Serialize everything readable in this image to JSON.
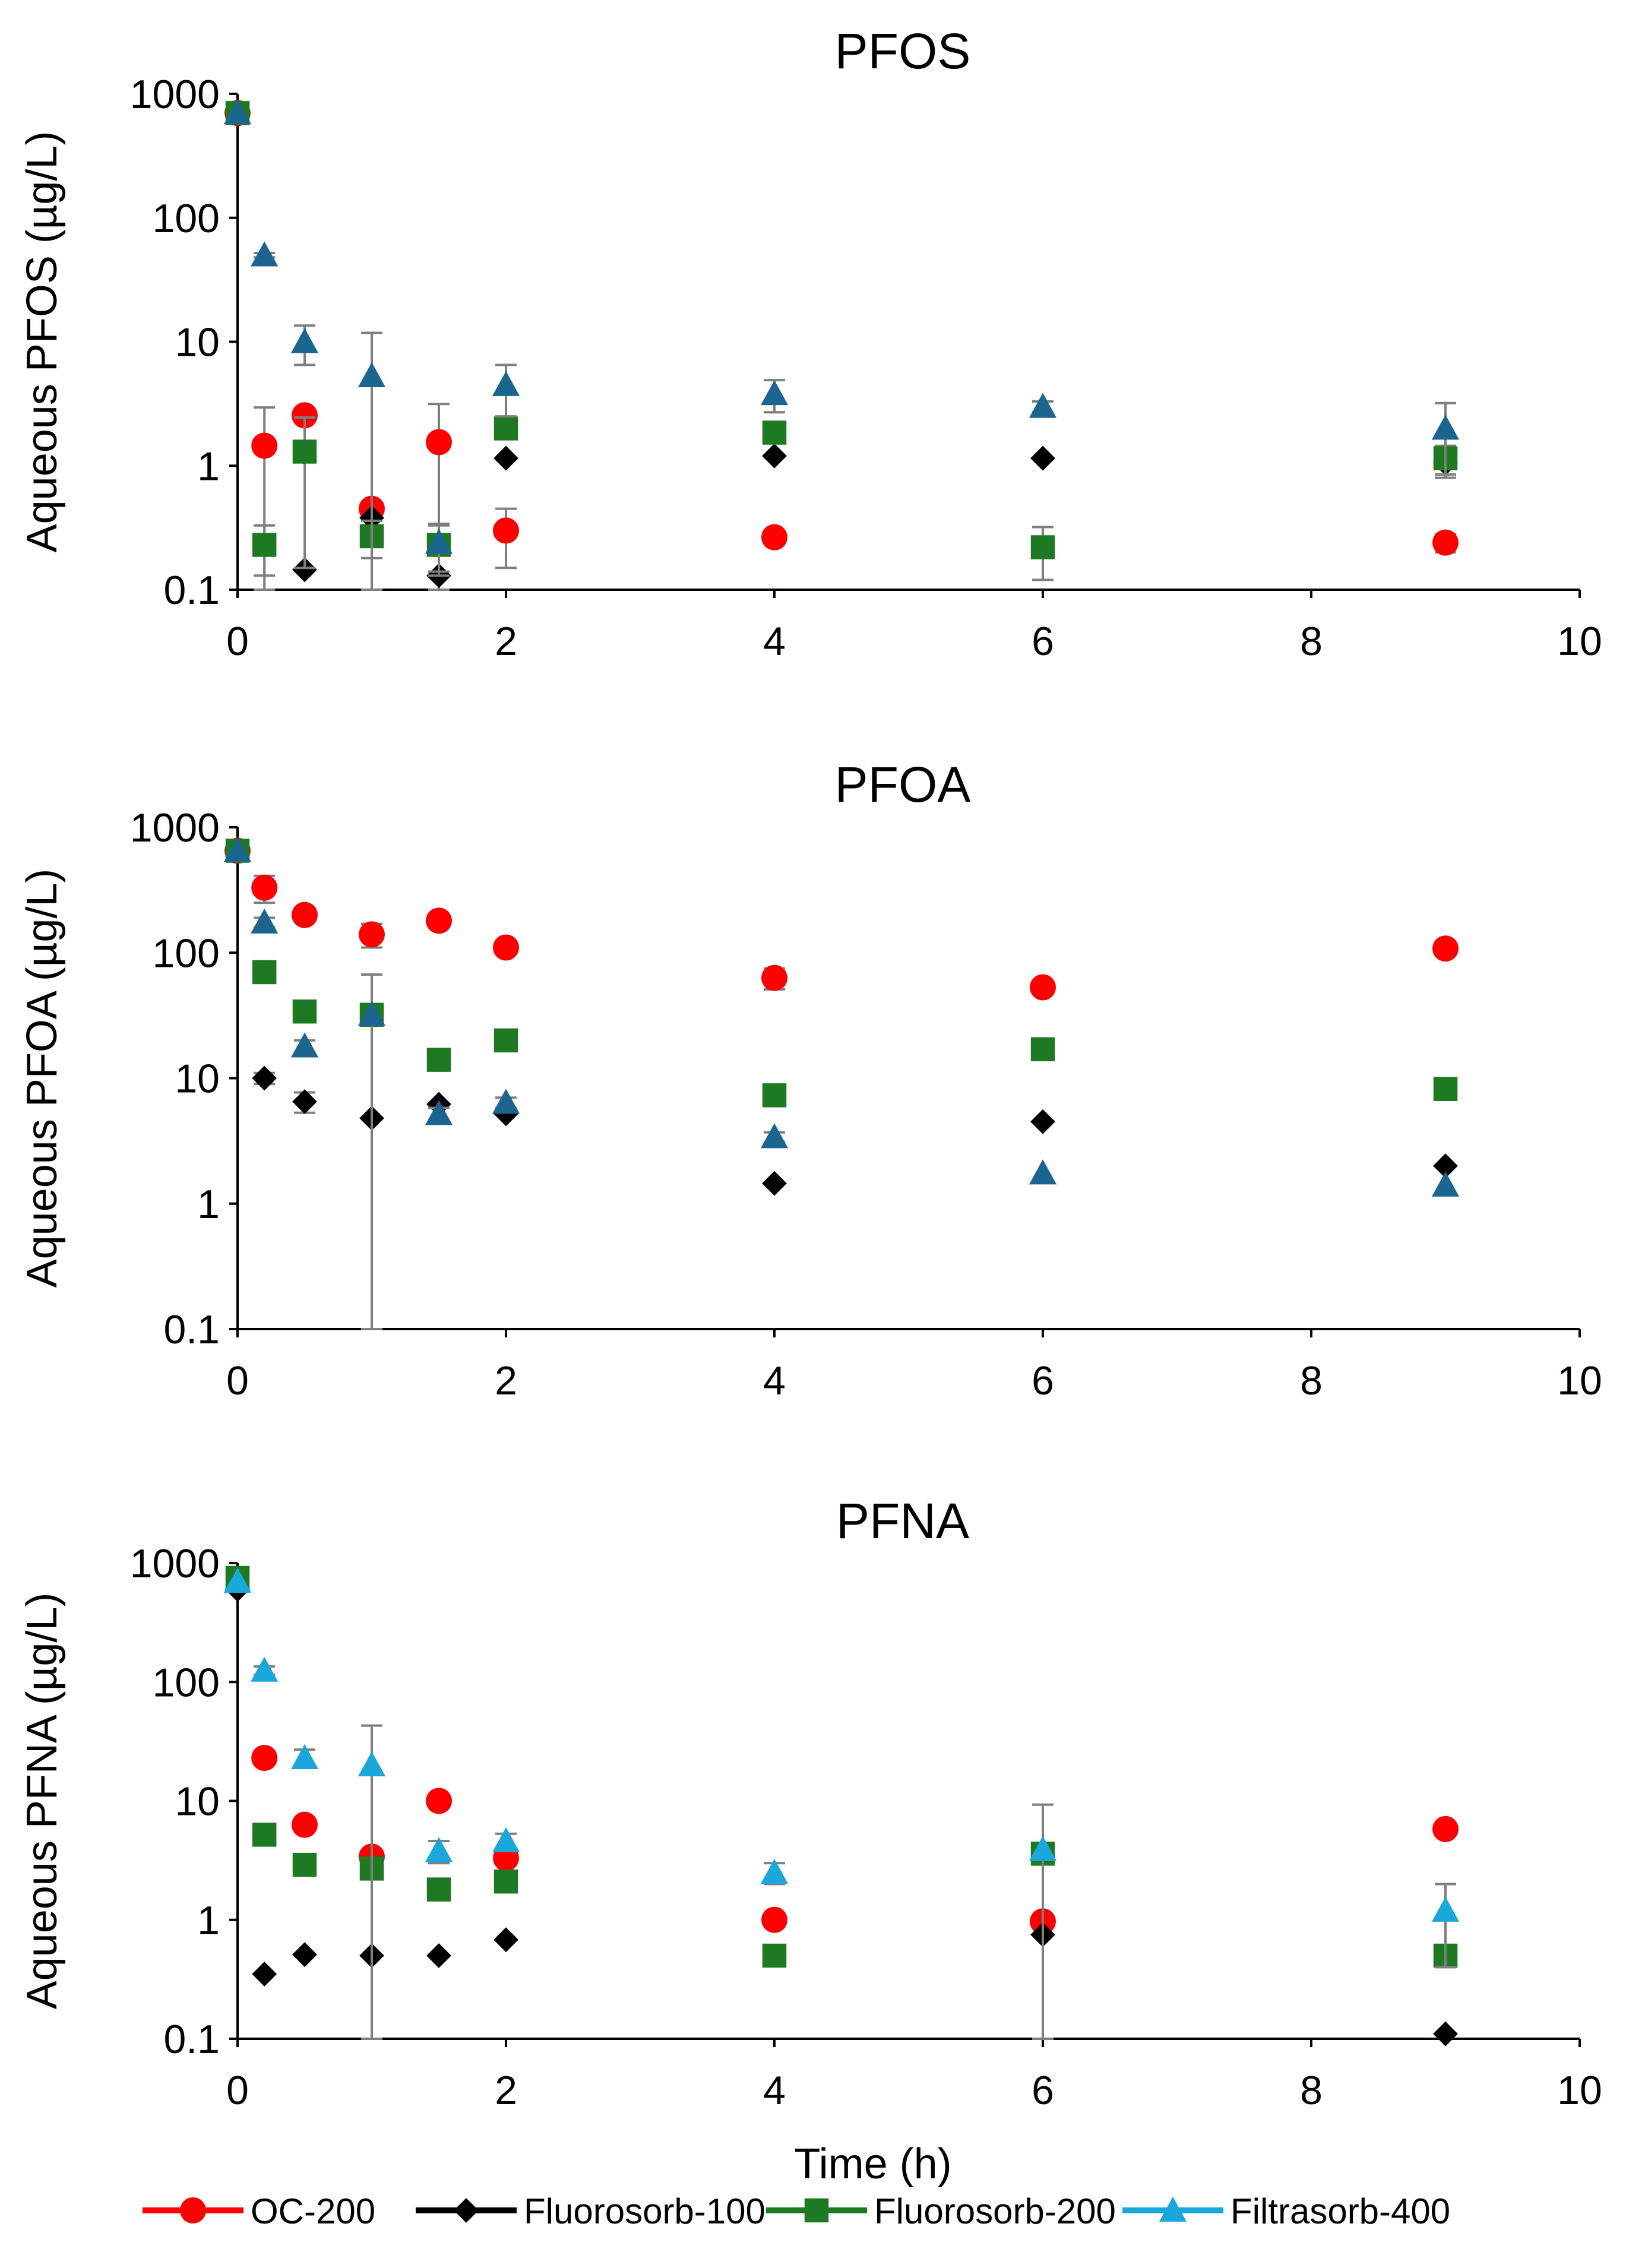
{
  "colors": {
    "OC-200": "#ff0000",
    "Fluorosorb-100": "#000000",
    "Fluorosorb-200": "#1e7a22",
    "Filtrasorb-400": "#1aa7dc",
    "Filtrasorb-400-dark": "#1a6690",
    "errorbar": "#7f7f7f",
    "axis": "#000000"
  },
  "legend": [
    {
      "label": "OC-200",
      "marker": "circle",
      "color": "#ff0000"
    },
    {
      "label": "Fluorosorb-100",
      "marker": "diamond",
      "color": "#000000"
    },
    {
      "label": "Fluorosorb-200",
      "marker": "square",
      "color": "#1e7a22"
    },
    {
      "label": "Filtrasorb-400",
      "marker": "triangle",
      "color": "#1aa7dc"
    }
  ],
  "chart_data": [
    {
      "type": "scatter",
      "title": "PFOS",
      "xlabel": "",
      "ylabel": "Aqueous PFOS (µg/L)",
      "yscale": "log",
      "xlim": [
        0,
        10
      ],
      "ylim": [
        0.1,
        1000
      ],
      "xticks": [
        "0",
        "2",
        "4",
        "6",
        "8",
        "10"
      ],
      "yticks": [
        "0.1",
        "1",
        "10",
        "100",
        "1000"
      ],
      "series": [
        {
          "name": "OC-200",
          "x": [
            0,
            0.2,
            0.5,
            1,
            1.5,
            2,
            4,
            9
          ],
          "y": [
            700,
            1.45,
            2.55,
            0.45,
            1.55,
            0.3,
            0.265,
            0.24
          ],
          "err": [
            0,
            1.5,
            0,
            0,
            1.6,
            0.15,
            0,
            0.04
          ]
        },
        {
          "name": "Fluorosorb-100",
          "x": [
            0,
            0.5,
            1,
            1.5,
            2,
            4,
            6,
            9
          ],
          "y": [
            700,
            0.145,
            0.38,
            0.13,
            1.15,
            1.2,
            1.15,
            1.05
          ],
          "err": [
            0,
            0,
            0,
            0,
            0,
            0,
            0,
            0
          ]
        },
        {
          "name": "Fluorosorb-200",
          "x": [
            0,
            0.2,
            0.5,
            1,
            1.5,
            2,
            4,
            6,
            9
          ],
          "y": [
            700,
            0.23,
            1.3,
            0.27,
            0.23,
            2.0,
            1.85,
            0.22,
            1.15
          ],
          "err": [
            0,
            0.1,
            1.15,
            0.09,
            0.1,
            0.3,
            0.3,
            0.1,
            0.3
          ]
        },
        {
          "name": "Filtrasorb-400",
          "x": [
            0,
            0.2,
            0.5,
            1,
            1.5,
            2,
            4,
            6,
            9
          ],
          "y": [
            700,
            50,
            10,
            5.3,
            0.24,
            4.5,
            3.8,
            3.0,
            2.0
          ],
          "err": [
            0,
            2,
            3.5,
            6.5,
            0.1,
            2.0,
            1.1,
            0.3,
            1.2
          ]
        }
      ]
    },
    {
      "type": "scatter",
      "title": "PFOA",
      "xlabel": "",
      "ylabel": "Aqueous PFOA (µg/L)",
      "yscale": "log",
      "xlim": [
        0,
        10
      ],
      "ylim": [
        0.1,
        1000
      ],
      "xticks": [
        "0",
        "2",
        "4",
        "6",
        "8",
        "10"
      ],
      "yticks": [
        "0.1",
        "1",
        "10",
        "100",
        "1000"
      ],
      "series": [
        {
          "name": "OC-200",
          "x": [
            0,
            0.2,
            0.5,
            1,
            1.5,
            2,
            4,
            6,
            9
          ],
          "y": [
            650,
            330,
            200,
            140,
            180,
            110,
            63,
            53,
            108
          ],
          "err": [
            0,
            80,
            0,
            30,
            0,
            0,
            12,
            0,
            0
          ]
        },
        {
          "name": "Fluorosorb-100",
          "x": [
            0,
            0.2,
            0.5,
            1,
            1.5,
            2,
            4,
            6,
            9
          ],
          "y": [
            650,
            10,
            6.5,
            4.8,
            6.2,
            5.2,
            1.45,
            4.5,
            2.0
          ],
          "err": [
            0,
            1,
            1.2,
            0,
            0,
            0,
            0,
            0,
            0
          ]
        },
        {
          "name": "Fluorosorb-200",
          "x": [
            0,
            0.2,
            0.5,
            1,
            1.5,
            2,
            4,
            6,
            9
          ],
          "y": [
            650,
            70,
            34,
            32,
            14,
            20,
            7.3,
            17,
            8.2
          ],
          "err": [
            0,
            0,
            0,
            0,
            0,
            0,
            0,
            0,
            0
          ]
        },
        {
          "name": "Filtrasorb-400",
          "x": [
            0,
            0.2,
            0.5,
            1,
            1.5,
            2,
            4,
            6,
            9
          ],
          "y": [
            650,
            175,
            18,
            32,
            5.2,
            6.4,
            3.4,
            1.75,
            1.4
          ],
          "err": [
            0,
            15,
            2,
            35,
            0.6,
            0.6,
            0.3,
            0,
            0
          ]
        }
      ]
    },
    {
      "type": "scatter",
      "title": "PFNA",
      "xlabel": "Time (h)",
      "ylabel": "Aqueous PFNA (µg/L)",
      "yscale": "log",
      "xlim": [
        0,
        10
      ],
      "ylim": [
        0.1,
        1000
      ],
      "xticks": [
        "0",
        "2",
        "4",
        "6",
        "8",
        "10"
      ],
      "yticks": [
        "0.1",
        "1",
        "10",
        "100",
        "1000"
      ],
      "series": [
        {
          "name": "OC-200",
          "x": [
            0.2,
            0.5,
            1,
            1.5,
            2,
            4,
            6,
            9
          ],
          "y": [
            23,
            6.3,
            3.4,
            10,
            3.3,
            1.0,
            0.97,
            5.8
          ],
          "err": [
            0,
            0,
            0,
            0,
            0,
            0,
            0,
            0
          ]
        },
        {
          "name": "Fluorosorb-100",
          "x": [
            0,
            0.2,
            0.5,
            1,
            1.5,
            2,
            6,
            9
          ],
          "y": [
            600,
            0.35,
            0.51,
            0.5,
            0.5,
            0.68,
            0.75,
            0.11
          ],
          "err": [
            0,
            0,
            0,
            0,
            0,
            0,
            0,
            0
          ]
        },
        {
          "name": "Fluorosorb-200",
          "x": [
            0,
            0.2,
            0.5,
            1,
            1.5,
            2,
            4,
            6,
            9
          ],
          "y": [
            750,
            5.2,
            2.9,
            2.7,
            1.8,
            2.1,
            0.5,
            3.6,
            0.5
          ],
          "err": [
            0,
            0,
            0,
            0,
            0,
            0,
            0,
            0,
            0
          ]
        },
        {
          "name": "Filtrasorb-400",
          "x": [
            0,
            0.2,
            0.5,
            1,
            1.5,
            2,
            4,
            6,
            9
          ],
          "y": [
            700,
            125,
            23,
            20,
            3.8,
            4.6,
            2.5,
            3.9,
            1.2
          ],
          "err": [
            0,
            10,
            4,
            23,
            0.8,
            0.7,
            0.5,
            5.4,
            0.8
          ]
        }
      ]
    }
  ]
}
